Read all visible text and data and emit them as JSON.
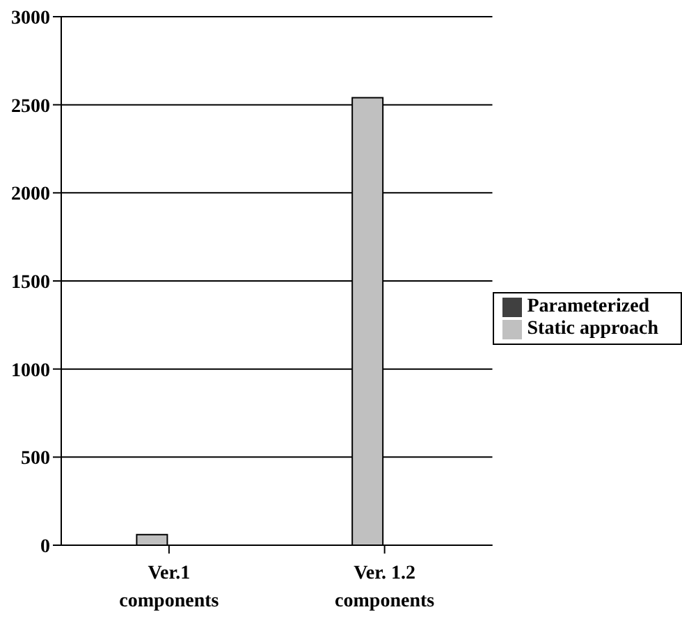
{
  "chart_data": {
    "type": "bar",
    "categories": [
      "Ver.1\ncomponents",
      "Ver. 1.2\ncomponents"
    ],
    "series": [
      {
        "name": "Static approach",
        "color": "#c0c0c0",
        "values": [
          60,
          2540
        ]
      },
      {
        "name": "Parameterized",
        "color": "#404040",
        "values": [
          0,
          0
        ]
      }
    ],
    "ylim": [
      0,
      3000
    ],
    "yticks": [
      0,
      500,
      1000,
      1500,
      2000,
      2500,
      3000
    ],
    "grid": "y",
    "legend": "right"
  }
}
